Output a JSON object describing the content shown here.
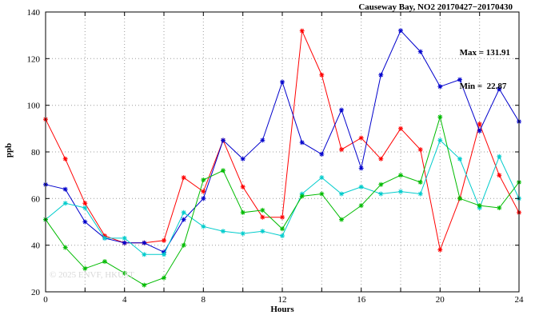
{
  "chart": {
    "title": "Causeway Bay, NO2 20170427−20170430",
    "max_label": "Max = 131.91",
    "min_label": "Min =  22.87",
    "ylabel": "ppb",
    "xlabel": "Hours",
    "watermark": "© 2025 ENVF, HKUST"
  },
  "chart_data": {
    "type": "line",
    "title": "Causeway Bay, NO2 20170427−20170430",
    "xlabel": "Hours",
    "ylabel": "ppb",
    "xlim": [
      0,
      24
    ],
    "ylim": [
      20,
      140
    ],
    "grid": true,
    "legend": "none",
    "xgrid_step": 2,
    "xticks_labeled": [
      0,
      4,
      8,
      12,
      16,
      20,
      24
    ],
    "yticks": [
      20,
      40,
      60,
      80,
      100,
      120,
      140
    ],
    "annotations": [
      "Max = 131.91",
      "Min =  22.87"
    ],
    "x": [
      0,
      1,
      2,
      3,
      4,
      5,
      6,
      7,
      8,
      9,
      10,
      11,
      12,
      13,
      14,
      15,
      16,
      17,
      18,
      19,
      20,
      21,
      22,
      23,
      24
    ],
    "series": [
      {
        "name": "series-red",
        "color": "#ff0000",
        "values": [
          94,
          77,
          58,
          44,
          41,
          41,
          42,
          69,
          63,
          85,
          65,
          52,
          52,
          131.91,
          113,
          81,
          86,
          77,
          90,
          81,
          38,
          60,
          92,
          70,
          54
        ]
      },
      {
        "name": "series-blue",
        "color": "#0000cc",
        "values": [
          66,
          64,
          50,
          43,
          41,
          41,
          37,
          51,
          60,
          85,
          77,
          85,
          110,
          84,
          79,
          98,
          73,
          113,
          132,
          123,
          108,
          111,
          89,
          107,
          93
        ]
      },
      {
        "name": "series-cyan",
        "color": "#00cccc",
        "values": [
          51,
          58,
          56,
          43,
          43,
          36,
          36,
          54,
          48,
          46,
          45,
          46,
          44,
          62,
          69,
          62,
          65,
          62,
          63,
          62,
          85,
          77,
          56,
          78,
          60
        ]
      },
      {
        "name": "series-green",
        "color": "#00bb00",
        "values": [
          51,
          39,
          30,
          33,
          28,
          22.87,
          26,
          40,
          68,
          72,
          54,
          55,
          47,
          61,
          62,
          51,
          57,
          66,
          70,
          67,
          95,
          60,
          57,
          56,
          67
        ]
      }
    ]
  }
}
